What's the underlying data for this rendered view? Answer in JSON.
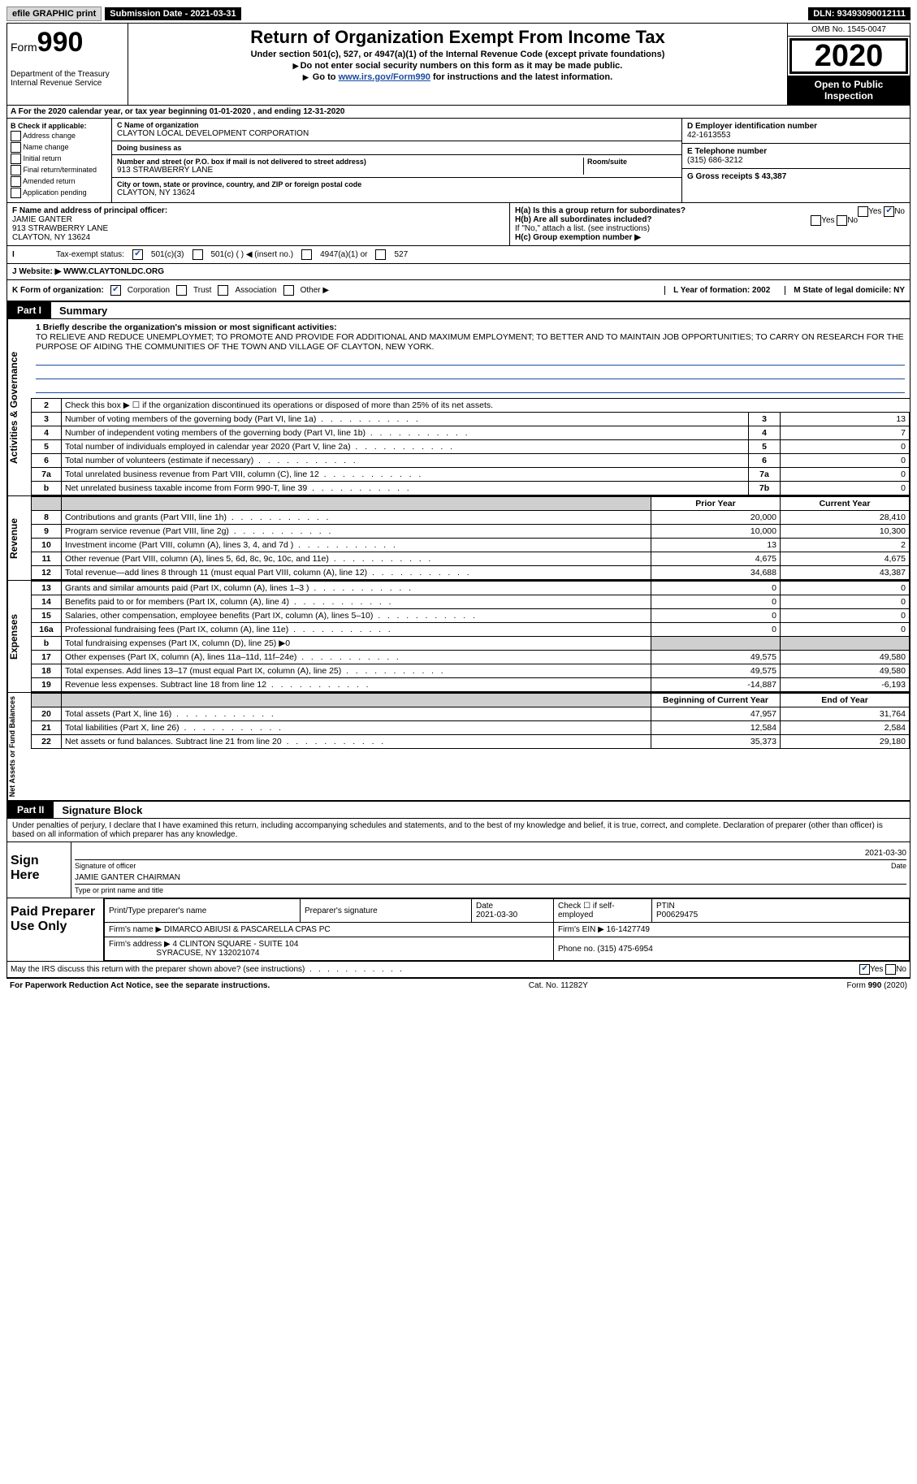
{
  "topbar": {
    "efile": "efile GRAPHIC print",
    "sub_label": "Submission Date - 2021-03-31",
    "dln": "DLN: 93493090012111"
  },
  "header": {
    "form_label": "Form",
    "form_num": "990",
    "dept": "Department of the Treasury",
    "irs": "Internal Revenue Service",
    "title": "Return of Organization Exempt From Income Tax",
    "sub1": "Under section 501(c), 527, or 4947(a)(1) of the Internal Revenue Code (except private foundations)",
    "sub2": "Do not enter social security numbers on this form as it may be made public.",
    "sub3_pre": "Go to ",
    "sub3_link": "www.irs.gov/Form990",
    "sub3_post": " for instructions and the latest information.",
    "omb": "OMB No. 1545-0047",
    "year": "2020",
    "open": "Open to Public Inspection"
  },
  "row_a": "A For the 2020 calendar year, or tax year beginning 01-01-2020    , and ending 12-31-2020",
  "section_b": {
    "label": "B Check if applicable:",
    "opts": [
      "Address change",
      "Name change",
      "Initial return",
      "Final return/terminated",
      "Amended return",
      "Application pending"
    ],
    "c_label": "C Name of organization",
    "c_val": "CLAYTON LOCAL DEVELOPMENT CORPORATION",
    "dba": "Doing business as",
    "addr_label": "Number and street (or P.O. box if mail is not delivered to street address)",
    "addr_val": "913 STRAWBERRY LANE",
    "room": "Room/suite",
    "city_label": "City or town, state or province, country, and ZIP or foreign postal code",
    "city_val": "CLAYTON, NY  13624",
    "d_label": "D Employer identification number",
    "d_val": "42-1613553",
    "e_label": "E Telephone number",
    "e_val": "(315) 686-3212",
    "g_label": "G Gross receipts $ 43,387"
  },
  "fgh": {
    "f_label": "F Name and address of principal officer:",
    "f_name": "JAMIE GANTER",
    "f_addr1": "913 STRAWBERRY LANE",
    "f_addr2": "CLAYTON, NY  13624",
    "ha": "H(a)  Is this a group return for subordinates?",
    "hb": "H(b)  Are all subordinates included?",
    "hb_note": "If \"No,\" attach a list. (see instructions)",
    "hc": "H(c)  Group exemption number ▶"
  },
  "tax": {
    "label": "Tax-exempt status:",
    "o1": "501(c)(3)",
    "o2": "501(c) (  ) ◀ (insert no.)",
    "o3": "4947(a)(1) or",
    "o4": "527"
  },
  "j": {
    "label": "J   Website: ▶",
    "val": "WWW.CLAYTONLDC.ORG"
  },
  "k": {
    "label": "K Form of organization:",
    "o1": "Corporation",
    "o2": "Trust",
    "o3": "Association",
    "o4": "Other ▶",
    "l": "L Year of formation: 2002",
    "m": "M State of legal domicile: NY"
  },
  "part1": {
    "tag": "Part I",
    "title": "Summary"
  },
  "mission": {
    "q": "1   Briefly describe the organization's mission or most significant activities:",
    "text": "TO RELIEVE AND REDUCE UNEMPLOYMET; TO PROMOTE AND PROVIDE FOR ADDITIONAL AND MAXIMUM EMPLOYMENT; TO BETTER AND TO MAINTAIN JOB OPPORTUNITIES; TO CARRY ON RESEARCH FOR THE PURPOSE OF AIDING THE COMMUNITIES OF THE TOWN AND VILLAGE OF CLAYTON, NEW YORK."
  },
  "gov_lines": [
    {
      "n": "2",
      "d": "Check this box ▶ ☐  if the organization discontinued its operations or disposed of more than 25% of its net assets.",
      "b": "",
      "v": ""
    },
    {
      "n": "3",
      "d": "Number of voting members of the governing body (Part VI, line 1a)",
      "b": "3",
      "v": "13"
    },
    {
      "n": "4",
      "d": "Number of independent voting members of the governing body (Part VI, line 1b)",
      "b": "4",
      "v": "7"
    },
    {
      "n": "5",
      "d": "Total number of individuals employed in calendar year 2020 (Part V, line 2a)",
      "b": "5",
      "v": "0"
    },
    {
      "n": "6",
      "d": "Total number of volunteers (estimate if necessary)",
      "b": "6",
      "v": "0"
    },
    {
      "n": "7a",
      "d": "Total unrelated business revenue from Part VIII, column (C), line 12",
      "b": "7a",
      "v": "0"
    },
    {
      "n": "b",
      "d": "Net unrelated business taxable income from Form 990-T, line 39",
      "b": "7b",
      "v": "0"
    }
  ],
  "rev_hdr": {
    "py": "Prior Year",
    "cy": "Current Year"
  },
  "rev_lines": [
    {
      "n": "8",
      "d": "Contributions and grants (Part VIII, line 1h)",
      "py": "20,000",
      "cy": "28,410"
    },
    {
      "n": "9",
      "d": "Program service revenue (Part VIII, line 2g)",
      "py": "10,000",
      "cy": "10,300"
    },
    {
      "n": "10",
      "d": "Investment income (Part VIII, column (A), lines 3, 4, and 7d )",
      "py": "13",
      "cy": "2"
    },
    {
      "n": "11",
      "d": "Other revenue (Part VIII, column (A), lines 5, 6d, 8c, 9c, 10c, and 11e)",
      "py": "4,675",
      "cy": "4,675"
    },
    {
      "n": "12",
      "d": "Total revenue—add lines 8 through 11 (must equal Part VIII, column (A), line 12)",
      "py": "34,688",
      "cy": "43,387"
    }
  ],
  "exp_lines": [
    {
      "n": "13",
      "d": "Grants and similar amounts paid (Part IX, column (A), lines 1–3 )",
      "py": "0",
      "cy": "0"
    },
    {
      "n": "14",
      "d": "Benefits paid to or for members (Part IX, column (A), line 4)",
      "py": "0",
      "cy": "0"
    },
    {
      "n": "15",
      "d": "Salaries, other compensation, employee benefits (Part IX, column (A), lines 5–10)",
      "py": "0",
      "cy": "0"
    },
    {
      "n": "16a",
      "d": "Professional fundraising fees (Part IX, column (A), line 11e)",
      "py": "0",
      "cy": "0"
    },
    {
      "n": "b",
      "d": "Total fundraising expenses (Part IX, column (D), line 25) ▶0",
      "py": "",
      "cy": "",
      "grey": true
    },
    {
      "n": "17",
      "d": "Other expenses (Part IX, column (A), lines 11a–11d, 11f–24e)",
      "py": "49,575",
      "cy": "49,580"
    },
    {
      "n": "18",
      "d": "Total expenses. Add lines 13–17 (must equal Part IX, column (A), line 25)",
      "py": "49,575",
      "cy": "49,580"
    },
    {
      "n": "19",
      "d": "Revenue less expenses. Subtract line 18 from line 12",
      "py": "-14,887",
      "cy": "-6,193"
    }
  ],
  "na_hdr": {
    "b": "Beginning of Current Year",
    "e": "End of Year"
  },
  "na_lines": [
    {
      "n": "20",
      "d": "Total assets (Part X, line 16)",
      "py": "47,957",
      "cy": "31,764"
    },
    {
      "n": "21",
      "d": "Total liabilities (Part X, line 26)",
      "py": "12,584",
      "cy": "2,584"
    },
    {
      "n": "22",
      "d": "Net assets or fund balances. Subtract line 21 from line 20",
      "py": "35,373",
      "cy": "29,180"
    }
  ],
  "part2": {
    "tag": "Part II",
    "title": "Signature Block"
  },
  "sig": {
    "decl": "Under penalties of perjury, I declare that I have examined this return, including accompanying schedules and statements, and to the best of my knowledge and belief, it is true, correct, and complete. Declaration of preparer (other than officer) is based on all information of which preparer has any knowledge.",
    "sign_here": "Sign Here",
    "date": "2021-03-30",
    "sig_officer": "Signature of officer",
    "name": "JAMIE GANTER  CHAIRMAN",
    "name_lbl": "Type or print name and title"
  },
  "prep": {
    "label": "Paid Preparer Use Only",
    "h1": "Print/Type preparer's name",
    "h2": "Preparer's signature",
    "h3": "Date",
    "h3v": "2021-03-30",
    "h4": "Check ☐ if self-employed",
    "h5": "PTIN",
    "h5v": "P00629475",
    "firm_lbl": "Firm's name   ▶",
    "firm": "DIMARCO ABIUSI & PASCARELLA CPAS PC",
    "ein_lbl": "Firm's EIN ▶",
    "ein": "16-1427749",
    "addr_lbl": "Firm's address ▶",
    "addr": "4 CLINTON SQUARE - SUITE 104",
    "addr2": "SYRACUSE, NY  132021074",
    "phone_lbl": "Phone no.",
    "phone": "(315) 475-6954"
  },
  "footer": {
    "q": "May the IRS discuss this return with the preparer shown above? (see instructions)",
    "pra": "For Paperwork Reduction Act Notice, see the separate instructions.",
    "cat": "Cat. No. 11282Y",
    "form": "Form 990 (2020)"
  },
  "side_labels": {
    "gov": "Activities & Governance",
    "rev": "Revenue",
    "exp": "Expenses",
    "na": "Net Assets or Fund Balances"
  }
}
